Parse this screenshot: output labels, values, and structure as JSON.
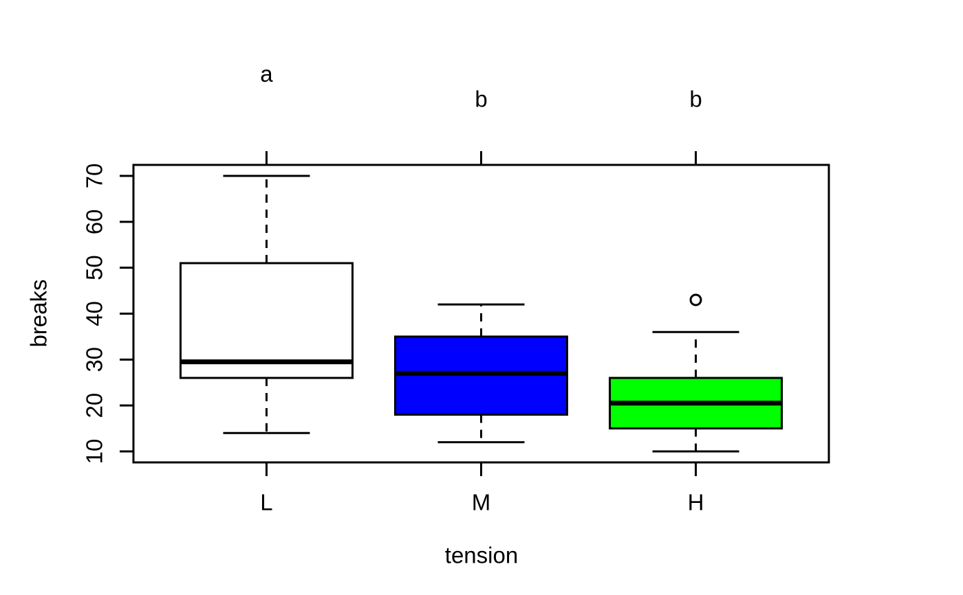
{
  "figure": {
    "background": "#ffffff",
    "foreground": "#000000"
  },
  "chart_data": {
    "type": "boxplot",
    "title": "",
    "xlabel": "tension",
    "ylabel": "breaks",
    "categories": [
      "L",
      "M",
      "H"
    ],
    "ylim": [
      10,
      70
    ],
    "yticks": [
      10,
      20,
      30,
      40,
      50,
      60,
      70
    ],
    "grid": false,
    "legend": "none",
    "axis_color": "#000000",
    "boxes": [
      {
        "category": "L",
        "fill": "#ffffff",
        "whisker_low": 14,
        "q1": 26,
        "median": 29.5,
        "q3": 51,
        "whisker_high": 70,
        "outliers": []
      },
      {
        "category": "M",
        "fill": "#0000ff",
        "whisker_low": 12,
        "q1": 18,
        "median": 27,
        "q3": 35,
        "whisker_high": 42,
        "outliers": []
      },
      {
        "category": "H",
        "fill": "#00ff00",
        "whisker_low": 10,
        "q1": 15,
        "median": 20.5,
        "q3": 26,
        "whisker_high": 36,
        "outliers": [
          43
        ]
      }
    ],
    "annotations": [
      {
        "label": "a",
        "category": "L",
        "y": 92.2
      },
      {
        "label": "b",
        "category": "M",
        "y": 86.8
      },
      {
        "label": "b",
        "category": "H",
        "y": 86.8
      }
    ]
  }
}
